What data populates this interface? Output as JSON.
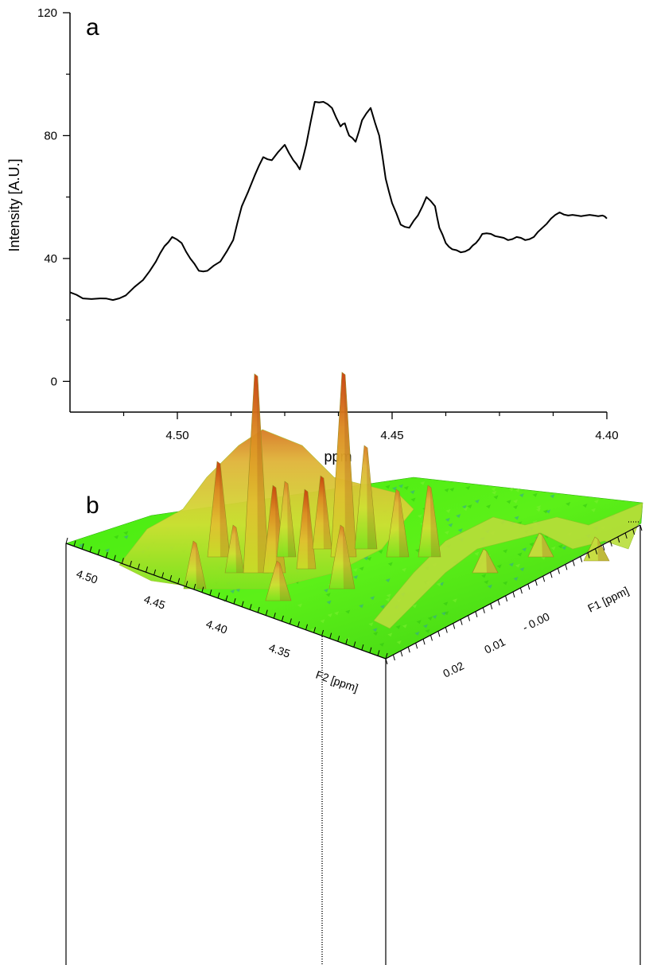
{
  "chart_data": [
    {
      "panel": "a",
      "type": "line",
      "xlabel": "ppm",
      "ylabel": "Intensity [A.U.]",
      "xlim": [
        4.525,
        4.4
      ],
      "xaxis_reversed": true,
      "ylim": [
        -10,
        120
      ],
      "x_ticks": [
        4.5,
        4.45,
        4.4
      ],
      "x_tick_labels": [
        "4.50",
        "4.45",
        "4.40"
      ],
      "y_ticks": [
        0,
        40,
        80,
        120
      ],
      "y_tick_labels": [
        "0",
        "40",
        "80",
        "120"
      ],
      "grid": false,
      "series": [
        {
          "x": [
            4.525,
            4.522,
            4.518,
            4.515,
            4.512,
            4.508,
            4.505,
            4.503,
            4.5012,
            4.499,
            4.497,
            4.495,
            4.493,
            4.49,
            4.487,
            4.485,
            4.482,
            4.48,
            4.478,
            4.475,
            4.473,
            4.4715,
            4.47,
            4.468,
            4.466,
            4.464,
            4.462,
            4.461,
            4.46,
            4.4585,
            4.457,
            4.455,
            4.453,
            4.4515,
            4.45,
            4.448,
            4.446,
            4.444,
            4.442,
            4.44,
            4.439,
            4.4375,
            4.436,
            4.434,
            4.432,
            4.4305,
            4.429,
            4.427,
            4.425,
            4.423,
            4.421,
            4.419,
            4.417,
            4.415,
            4.413,
            4.411,
            4.409,
            4.407,
            4.405,
            4.403,
            4.401,
            4.4
          ],
          "y": [
            29,
            27,
            27,
            26.5,
            28,
            33,
            39,
            44,
            47,
            45,
            40,
            36,
            36,
            39,
            46,
            57,
            67,
            73,
            72,
            77,
            72,
            69,
            77,
            91,
            91,
            89,
            83,
            84,
            80,
            78,
            85,
            89,
            80,
            66,
            58,
            51,
            50,
            54,
            60,
            57,
            50,
            45,
            43,
            42,
            43,
            45,
            48,
            48,
            47,
            46,
            47,
            46,
            47,
            50,
            53,
            55,
            54,
            54,
            54,
            54,
            54,
            53
          ]
        }
      ]
    },
    {
      "panel": "b",
      "type": "surface3d",
      "axes": [
        {
          "name": "F2 [ppm]",
          "tick_labels": [
            "4.50",
            "4.45",
            "4.40",
            "4.35"
          ]
        },
        {
          "name": "F1 [ppm]",
          "tick_labels": [
            "0.02",
            "0.01",
            "- 0.00"
          ]
        }
      ],
      "colormap": {
        "low": "#33ee00",
        "mid": "#dede2a",
        "high": "#d85a10"
      },
      "peaks_description_values": [
        {
          "F2": 4.47,
          "F1": 0.015,
          "rel_height": 0.78
        },
        {
          "F2": 4.41,
          "F1": 0.015,
          "rel_height": 1.0
        }
      ]
    }
  ],
  "labels": {
    "panel_a": "a",
    "panel_b": "b"
  }
}
